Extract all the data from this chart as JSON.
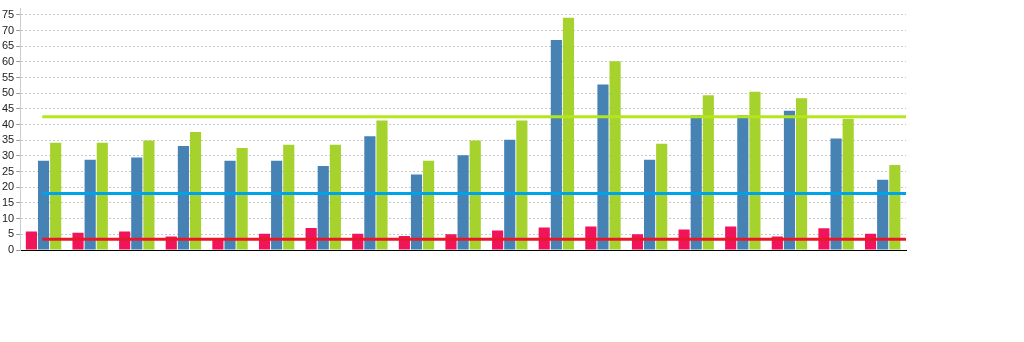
{
  "chart_data": {
    "type": "bar",
    "categories": [
      null,
      null,
      null,
      null,
      null,
      null,
      null,
      null,
      null,
      null,
      null,
      null,
      null,
      null,
      null,
      null,
      null,
      null,
      null
    ],
    "series": [
      {
        "color": "#f0145a",
        "values": [
          5.9,
          5.5,
          5.9,
          4.3,
          3.5,
          5.2,
          7.0,
          5.2,
          4.5,
          5.0,
          6.2,
          7.2,
          7.5,
          5.0,
          6.5,
          7.5,
          4.3,
          6.9,
          5.2
        ]
      },
      {
        "color": "#4682b4",
        "values": [
          28.5,
          28.8,
          29.5,
          33.2,
          28.5,
          28.5,
          26.8,
          36.3,
          24.1,
          30.2,
          35.2,
          67.0,
          52.8,
          28.8,
          43.0,
          43.0,
          44.4,
          35.6,
          22.4
        ]
      },
      {
        "color": "#a6d22e",
        "values": [
          34.2,
          34.2,
          34.9,
          37.6,
          32.5,
          33.6,
          33.6,
          41.3,
          28.5,
          34.9,
          41.3,
          74.1,
          60.2,
          33.9,
          49.4,
          50.5,
          48.4,
          41.9,
          27.1
        ]
      }
    ],
    "ylim": [
      0,
      77
    ],
    "yticks": [
      0,
      5,
      10,
      15,
      20,
      25,
      30,
      35,
      40,
      45,
      50,
      55,
      60,
      65,
      70,
      75
    ],
    "grid": "y",
    "legend": false,
    "tick_labels": "y",
    "ref_lines": [
      {
        "axis": "y",
        "value": 42.5,
        "color": "#b5e61d"
      },
      {
        "axis": "y",
        "value": 18,
        "color": "#00a2e8"
      },
      {
        "axis": "y",
        "value": 3.4,
        "color": "#e8182a"
      }
    ]
  }
}
